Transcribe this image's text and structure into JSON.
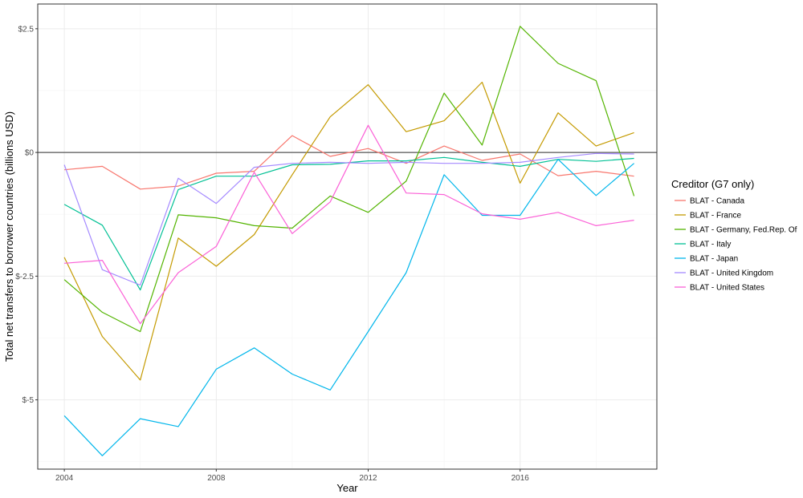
{
  "chart_data": {
    "type": "line",
    "xlabel": "Year",
    "ylabel": "Total net transfers to borrower countries (billions USD)",
    "xlim": [
      2003.3,
      2019.6
    ],
    "ylim": [
      -6.4,
      3.0
    ],
    "x_ticks": [
      2004,
      2008,
      2012,
      2016
    ],
    "y_ticks": [
      {
        "value": 2.5,
        "label": "$2.5"
      },
      {
        "value": 0,
        "label": "$0"
      },
      {
        "value": -2.5,
        "label": "$-2.5"
      },
      {
        "value": -5,
        "label": "$-5"
      }
    ],
    "reference_line": 0,
    "legend": {
      "title": "Creditor (G7 only)",
      "position": "right"
    },
    "x": [
      2004,
      2005,
      2006,
      2007,
      2008,
      2009,
      2010,
      2011,
      2012,
      2013,
      2014,
      2015,
      2016,
      2017,
      2018,
      2019
    ],
    "series": [
      {
        "name": "BLAT - Canada",
        "color": "#F8766D",
        "values": [
          -0.35,
          -0.28,
          -0.74,
          -0.68,
          -0.42,
          -0.38,
          0.34,
          -0.08,
          0.08,
          -0.22,
          0.13,
          -0.16,
          -0.03,
          -0.47,
          -0.38,
          -0.48
        ]
      },
      {
        "name": "BLAT - France",
        "color": "#C49A00",
        "values": [
          -2.12,
          -3.72,
          -4.6,
          -1.73,
          -2.3,
          -1.66,
          -0.45,
          0.72,
          1.37,
          0.42,
          0.64,
          1.42,
          -0.62,
          0.8,
          0.13,
          0.4
        ]
      },
      {
        "name": "BLAT - Germany, Fed.Rep. Of",
        "color": "#53B400",
        "values": [
          -2.57,
          -3.23,
          -3.62,
          -1.26,
          -1.32,
          -1.48,
          -1.53,
          -0.88,
          -1.21,
          -0.58,
          1.2,
          0.15,
          2.55,
          1.8,
          1.45,
          -0.88
        ]
      },
      {
        "name": "BLAT - Italy",
        "color": "#00C094",
        "values": [
          -1.05,
          -1.47,
          -2.78,
          -0.75,
          -0.48,
          -0.48,
          -0.25,
          -0.24,
          -0.17,
          -0.17,
          -0.1,
          -0.2,
          -0.28,
          -0.14,
          -0.18,
          -0.12
        ]
      },
      {
        "name": "BLAT - Japan",
        "color": "#00B6EB",
        "values": [
          -5.32,
          -6.13,
          -5.38,
          -5.54,
          -4.38,
          -3.95,
          -4.48,
          -4.8,
          -3.62,
          -2.43,
          -0.45,
          -1.27,
          -1.27,
          -0.14,
          -0.87,
          -0.22
        ]
      },
      {
        "name": "BLAT - United Kingdom",
        "color": "#A58AFF",
        "values": [
          -0.25,
          -2.37,
          -2.68,
          -0.52,
          -1.03,
          -0.3,
          -0.22,
          -0.2,
          -0.22,
          -0.2,
          -0.22,
          -0.22,
          -0.2,
          -0.1,
          -0.02,
          -0.03
        ]
      },
      {
        "name": "BLAT - United States",
        "color": "#FB61D7",
        "values": [
          -2.24,
          -2.18,
          -3.46,
          -2.43,
          -1.9,
          -0.4,
          -1.64,
          -1.0,
          0.55,
          -0.82,
          -0.85,
          -1.24,
          -1.35,
          -1.21,
          -1.48,
          -1.37
        ]
      }
    ]
  }
}
